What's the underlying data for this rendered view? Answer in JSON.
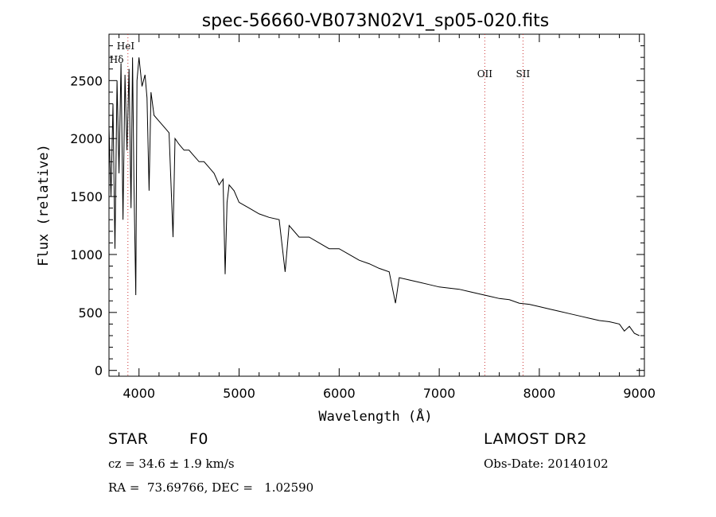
{
  "chart_data": {
    "type": "line",
    "title": "spec-56660-VB073N02V1_sp05-020.fits",
    "xlabel": "Wavelength (Å)",
    "ylabel": "Flux (relative)",
    "xlim": [
      3700,
      9050
    ],
    "ylim": [
      -50,
      2900
    ],
    "x_ticks": [
      4000,
      5000,
      6000,
      7000,
      8000,
      9000
    ],
    "y_ticks": [
      0,
      500,
      1000,
      1500,
      2000,
      2500
    ],
    "grid": false,
    "line_color": "#000000",
    "marker_color": "#cc3333",
    "spectral_lines": [
      {
        "label": "Hδ",
        "x": 3889
      },
      {
        "label": "HeI",
        "x": 3889
      },
      {
        "label": "OII",
        "x": 7455
      },
      {
        "label": "SII",
        "x": 7837
      }
    ],
    "series": [
      {
        "x": [
          3700,
          3720,
          3740,
          3760,
          3780,
          3800,
          3820,
          3840,
          3860,
          3880,
          3900,
          3920,
          3935,
          3950,
          3968,
          3980,
          4000,
          4030,
          4060,
          4080,
          4101,
          4120,
          4150,
          4200,
          4250,
          4300,
          4340,
          4360,
          4400,
          4450,
          4500,
          4550,
          4600,
          4650,
          4700,
          4750,
          4800,
          4840,
          4861,
          4880,
          4900,
          4950,
          5000,
          5100,
          5200,
          5300,
          5400,
          5460,
          5500,
          5600,
          5700,
          5800,
          5900,
          6000,
          6100,
          6200,
          6300,
          6400,
          6500,
          6563,
          6600,
          6700,
          6800,
          6900,
          7000,
          7100,
          7200,
          7300,
          7400,
          7500,
          7600,
          7700,
          7800,
          7900,
          8000,
          8100,
          8200,
          8300,
          8400,
          8500,
          8600,
          8700,
          8800,
          8850,
          8900,
          8950,
          9000
        ],
        "y": [
          2100,
          1500,
          2300,
          1050,
          2500,
          1700,
          2650,
          1300,
          2550,
          1900,
          2600,
          1400,
          2700,
          1600,
          650,
          2500,
          2700,
          2450,
          2550,
          2350,
          1550,
          2400,
          2200,
          2150,
          2100,
          2050,
          1150,
          2000,
          1950,
          1900,
          1900,
          1850,
          1800,
          1800,
          1750,
          1700,
          1600,
          1650,
          830,
          1450,
          1600,
          1550,
          1450,
          1400,
          1350,
          1320,
          1300,
          850,
          1250,
          1150,
          1150,
          1100,
          1050,
          1050,
          1000,
          950,
          920,
          880,
          850,
          580,
          800,
          780,
          760,
          740,
          720,
          710,
          700,
          680,
          660,
          640,
          620,
          610,
          580,
          570,
          550,
          530,
          510,
          490,
          470,
          450,
          430,
          420,
          400,
          340,
          380,
          320,
          300
        ]
      }
    ]
  },
  "info": {
    "object_class": "STAR",
    "subclass": "F0",
    "survey": "LAMOST DR2",
    "cz": "cz = 34.6 ± 1.9 km/s",
    "obs_date": "Obs-Date: 20140102",
    "coords": "RA =  73.69766, DEC =   1.02590"
  }
}
